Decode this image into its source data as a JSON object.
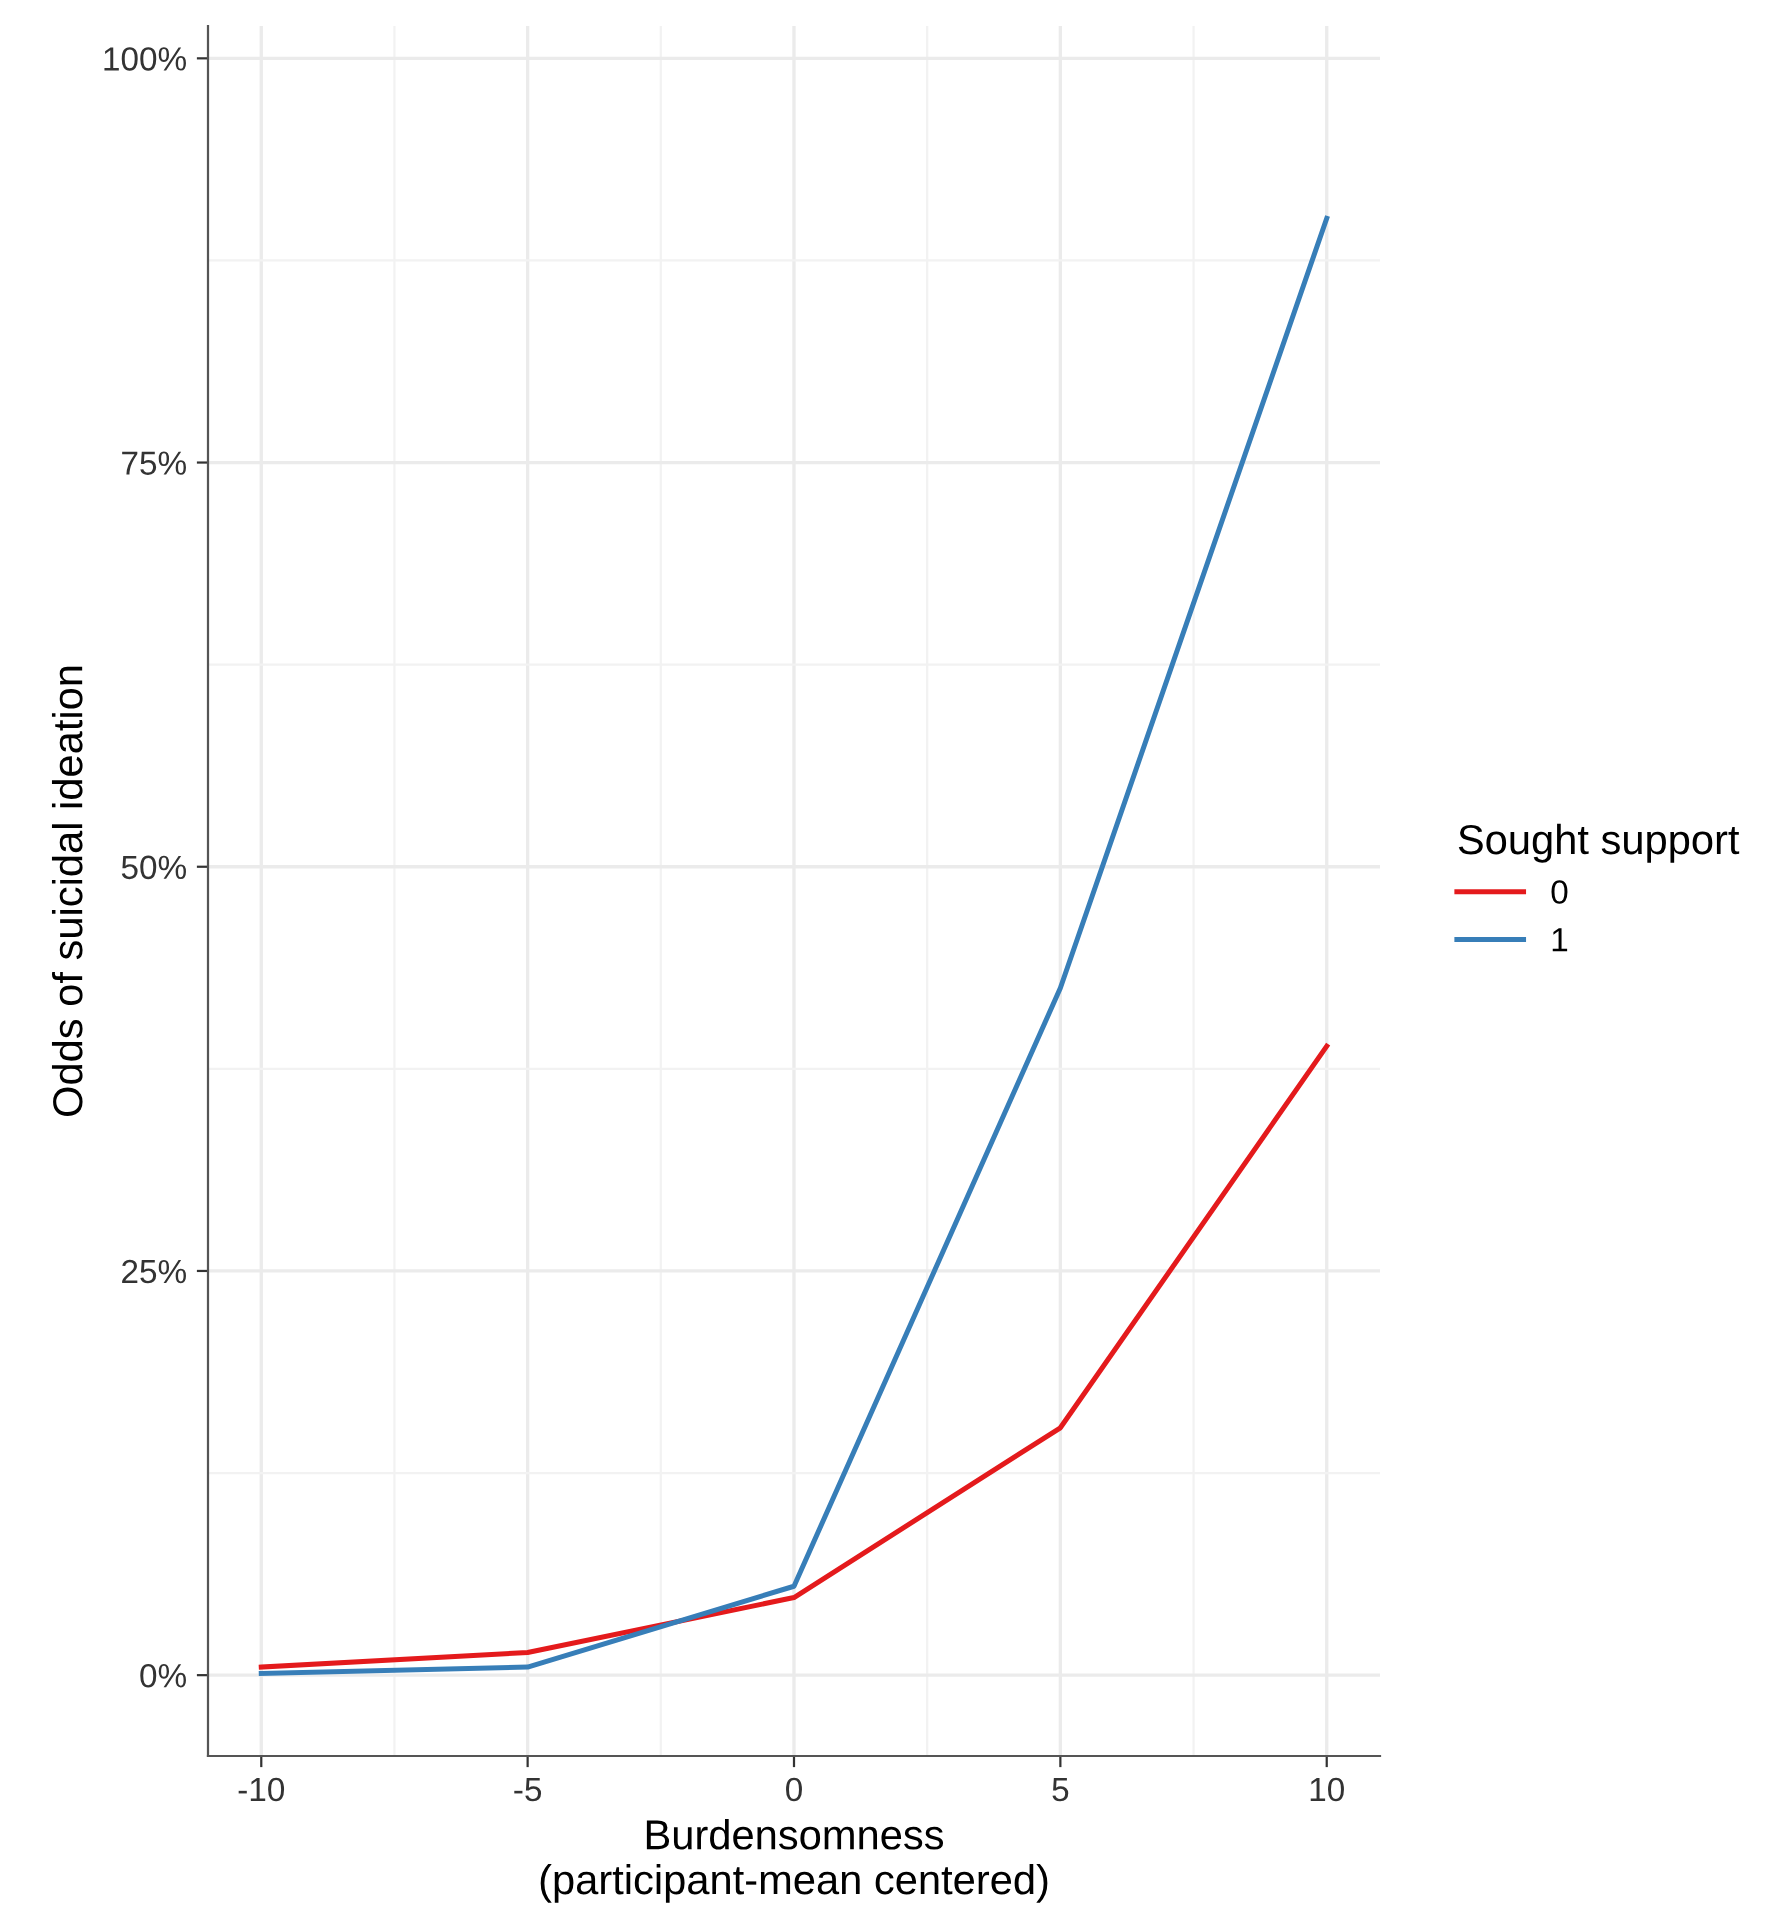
{
  "chart_data": {
    "type": "line",
    "xlabel": "Burdensomness\n(participant-mean centered)",
    "ylabel": "Odds of suicidal ideation",
    "legend_title": "Sought support",
    "x": [
      -10,
      -5,
      0,
      5,
      10
    ],
    "series": [
      {
        "name": "0",
        "color": "#e41a1c",
        "values": [
          0.5,
          1.4,
          4.8,
          15.3,
          38.9
        ]
      },
      {
        "name": "1",
        "color": "#377eb8",
        "values": [
          0.1,
          0.5,
          5.5,
          42.5,
          90.1
        ]
      }
    ],
    "xlim": [
      -11,
      11
    ],
    "xticks": [
      -10,
      -5,
      0,
      5,
      10
    ],
    "ylim": [
      -5,
      102
    ],
    "yticks": [
      {
        "value": 0,
        "label": "0%"
      },
      {
        "value": 25,
        "label": "25%"
      },
      {
        "value": 50,
        "label": "50%"
      },
      {
        "value": 75,
        "label": "75%"
      },
      {
        "value": 100,
        "label": "100%"
      }
    ],
    "grid": true,
    "legend": "right",
    "marker": "none",
    "line_style": "solid"
  }
}
